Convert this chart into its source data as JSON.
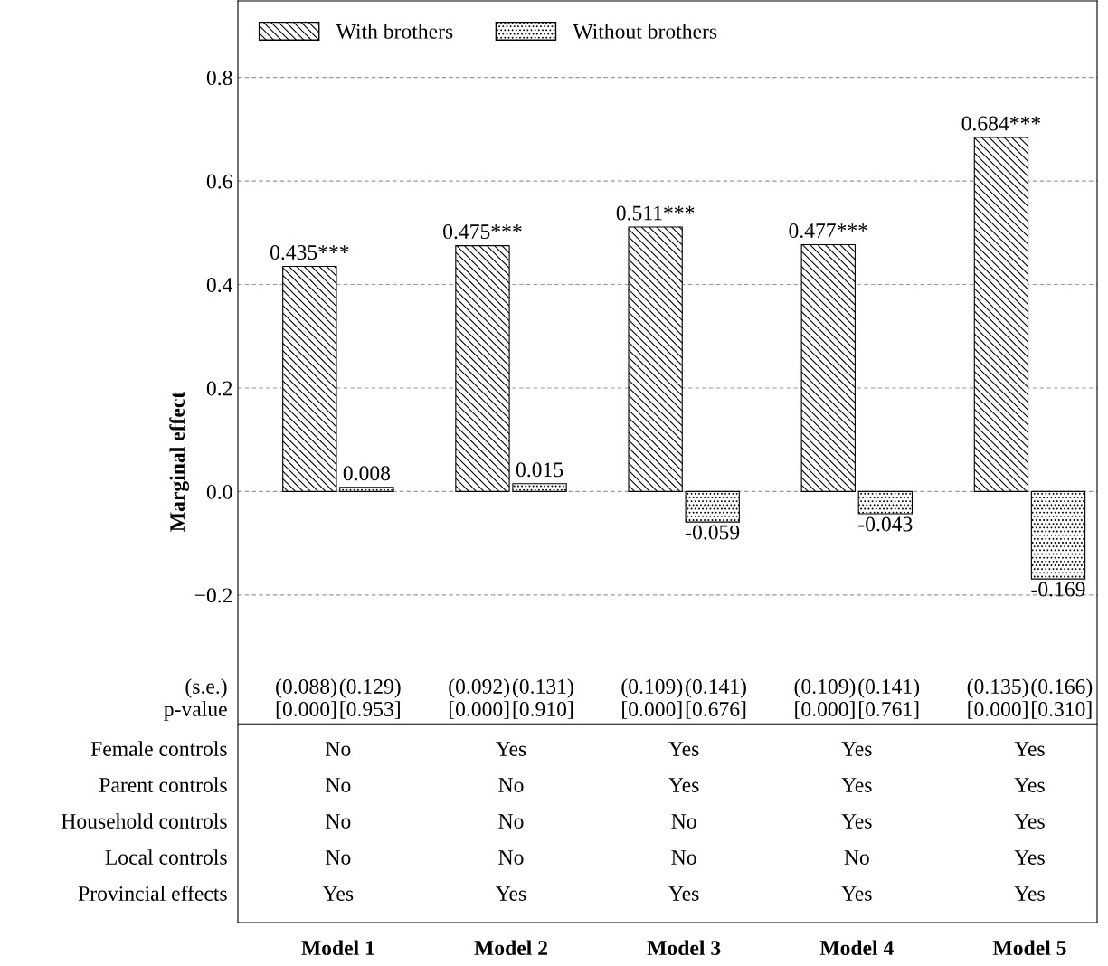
{
  "chart_data": {
    "type": "bar",
    "ylabel": "Marginal effect",
    "categories": [
      "Model 1",
      "Model 2",
      "Model 3",
      "Model 4",
      "Model 5"
    ],
    "series": [
      {
        "name": "With brothers",
        "color": "#000000",
        "values": [
          0.435,
          0.475,
          0.511,
          0.477,
          0.684
        ],
        "value_labels": [
          "0.435***",
          "0.475***",
          "0.511***",
          "0.477***",
          "0.684***"
        ]
      },
      {
        "name": "Without brothers",
        "color": "#000000",
        "values": [
          0.008,
          0.015,
          -0.059,
          -0.043,
          -0.169
        ],
        "value_labels": [
          "0.008",
          "0.015",
          "-0.059",
          "-0.043",
          "-0.169"
        ]
      }
    ],
    "ylim": [
      -0.833,
      0.948
    ],
    "yticks": [
      {
        "value": -0.2,
        "label": "−0.2"
      },
      {
        "value": 0,
        "label": "0.0"
      },
      {
        "value": 0.2,
        "label": "0.2"
      },
      {
        "value": 0.4,
        "label": "0.4"
      },
      {
        "value": 0.6,
        "label": "0.6"
      },
      {
        "value": 0.8,
        "label": "0.8"
      }
    ],
    "grid": "y",
    "legend": "top left",
    "ref_lines": [
      {
        "axis": "y",
        "value": -0.449,
        "color": "#000000",
        "line_style": "solid"
      }
    ],
    "annotations": [
      "(s.e.)",
      "p-value",
      "(0.088)",
      "(0.129)",
      "(0.092)",
      "(0.131)",
      "(0.109)",
      "(0.141)",
      "(0.109)",
      "(0.141)",
      "(0.135)",
      "(0.166)",
      "[0.000]",
      "[0.953]",
      "[0.000]",
      "[0.910]",
      "[0.000]",
      "[0.676]",
      "[0.000]",
      "[0.761]",
      "[0.000]",
      "[0.310]",
      "Female controls",
      "Parent controls",
      "Household controls",
      "Local controls",
      "Provincial effects",
      "No",
      "Yes",
      "Yes",
      "Yes",
      "Yes",
      "No",
      "No",
      "Yes",
      "Yes",
      "Yes",
      "No",
      "No",
      "No",
      "Yes",
      "Yes",
      "No",
      "No",
      "No",
      "No",
      "Yes",
      "Yes",
      "Yes",
      "Yes",
      "Yes",
      "Yes"
    ]
  }
}
